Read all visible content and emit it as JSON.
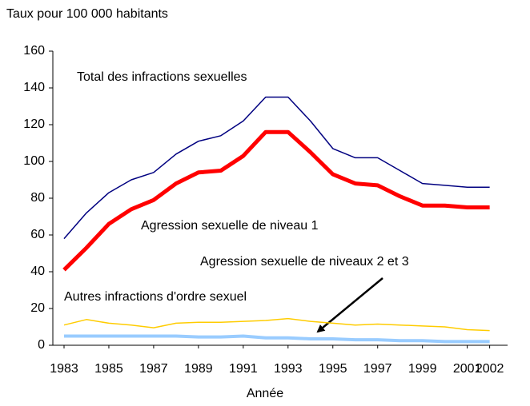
{
  "chart_data": {
    "type": "line",
    "y_label": "Taux pour 100 000 habitants",
    "x_label": "Année",
    "x": [
      1983,
      1984,
      1985,
      1986,
      1987,
      1988,
      1989,
      1990,
      1991,
      1992,
      1993,
      1994,
      1995,
      1996,
      1997,
      1998,
      1999,
      2000,
      2001,
      2002
    ],
    "series": [
      {
        "name": "Total des infractions sexuelles",
        "color": "#000080",
        "width": 1.5,
        "values": [
          58,
          72,
          83,
          90,
          94,
          104,
          111,
          114,
          122,
          135,
          135,
          122,
          107,
          102,
          102,
          95,
          88,
          87,
          86,
          86
        ]
      },
      {
        "name": "Agression sexuelle de niveau 1",
        "color": "#ff0000",
        "width": 5,
        "values": [
          41,
          53,
          66,
          74,
          79,
          88,
          94,
          95,
          103,
          116,
          116,
          105,
          93,
          88,
          87,
          81,
          76,
          76,
          75,
          75
        ]
      },
      {
        "name": "Autres infractions d'ordre sexuel",
        "color": "#ffcc00",
        "width": 1.5,
        "values": [
          11,
          14,
          12,
          11,
          9.5,
          12,
          12.5,
          12.5,
          13,
          13.5,
          14.5,
          13,
          12,
          11,
          11.5,
          11,
          10.5,
          10,
          8.5,
          8
        ]
      },
      {
        "name": "Agression sexuelle de niveaux 2 et 3",
        "color": "#99ccff",
        "width": 4,
        "values": [
          5,
          5,
          5,
          5,
          5,
          5,
          4.5,
          4.5,
          5,
          4,
          4,
          3.5,
          3.5,
          3,
          3,
          2.5,
          2.5,
          2,
          2,
          2
        ]
      }
    ],
    "xlim": [
      1982.5,
      2002.8
    ],
    "xticks": [
      1983,
      1985,
      1987,
      1989,
      1991,
      1993,
      1995,
      1997,
      1999,
      2001,
      2002
    ],
    "ylim": [
      0,
      160
    ],
    "yticks": [
      0,
      20,
      40,
      60,
      80,
      100,
      120,
      140,
      160
    ],
    "grid": false
  }
}
